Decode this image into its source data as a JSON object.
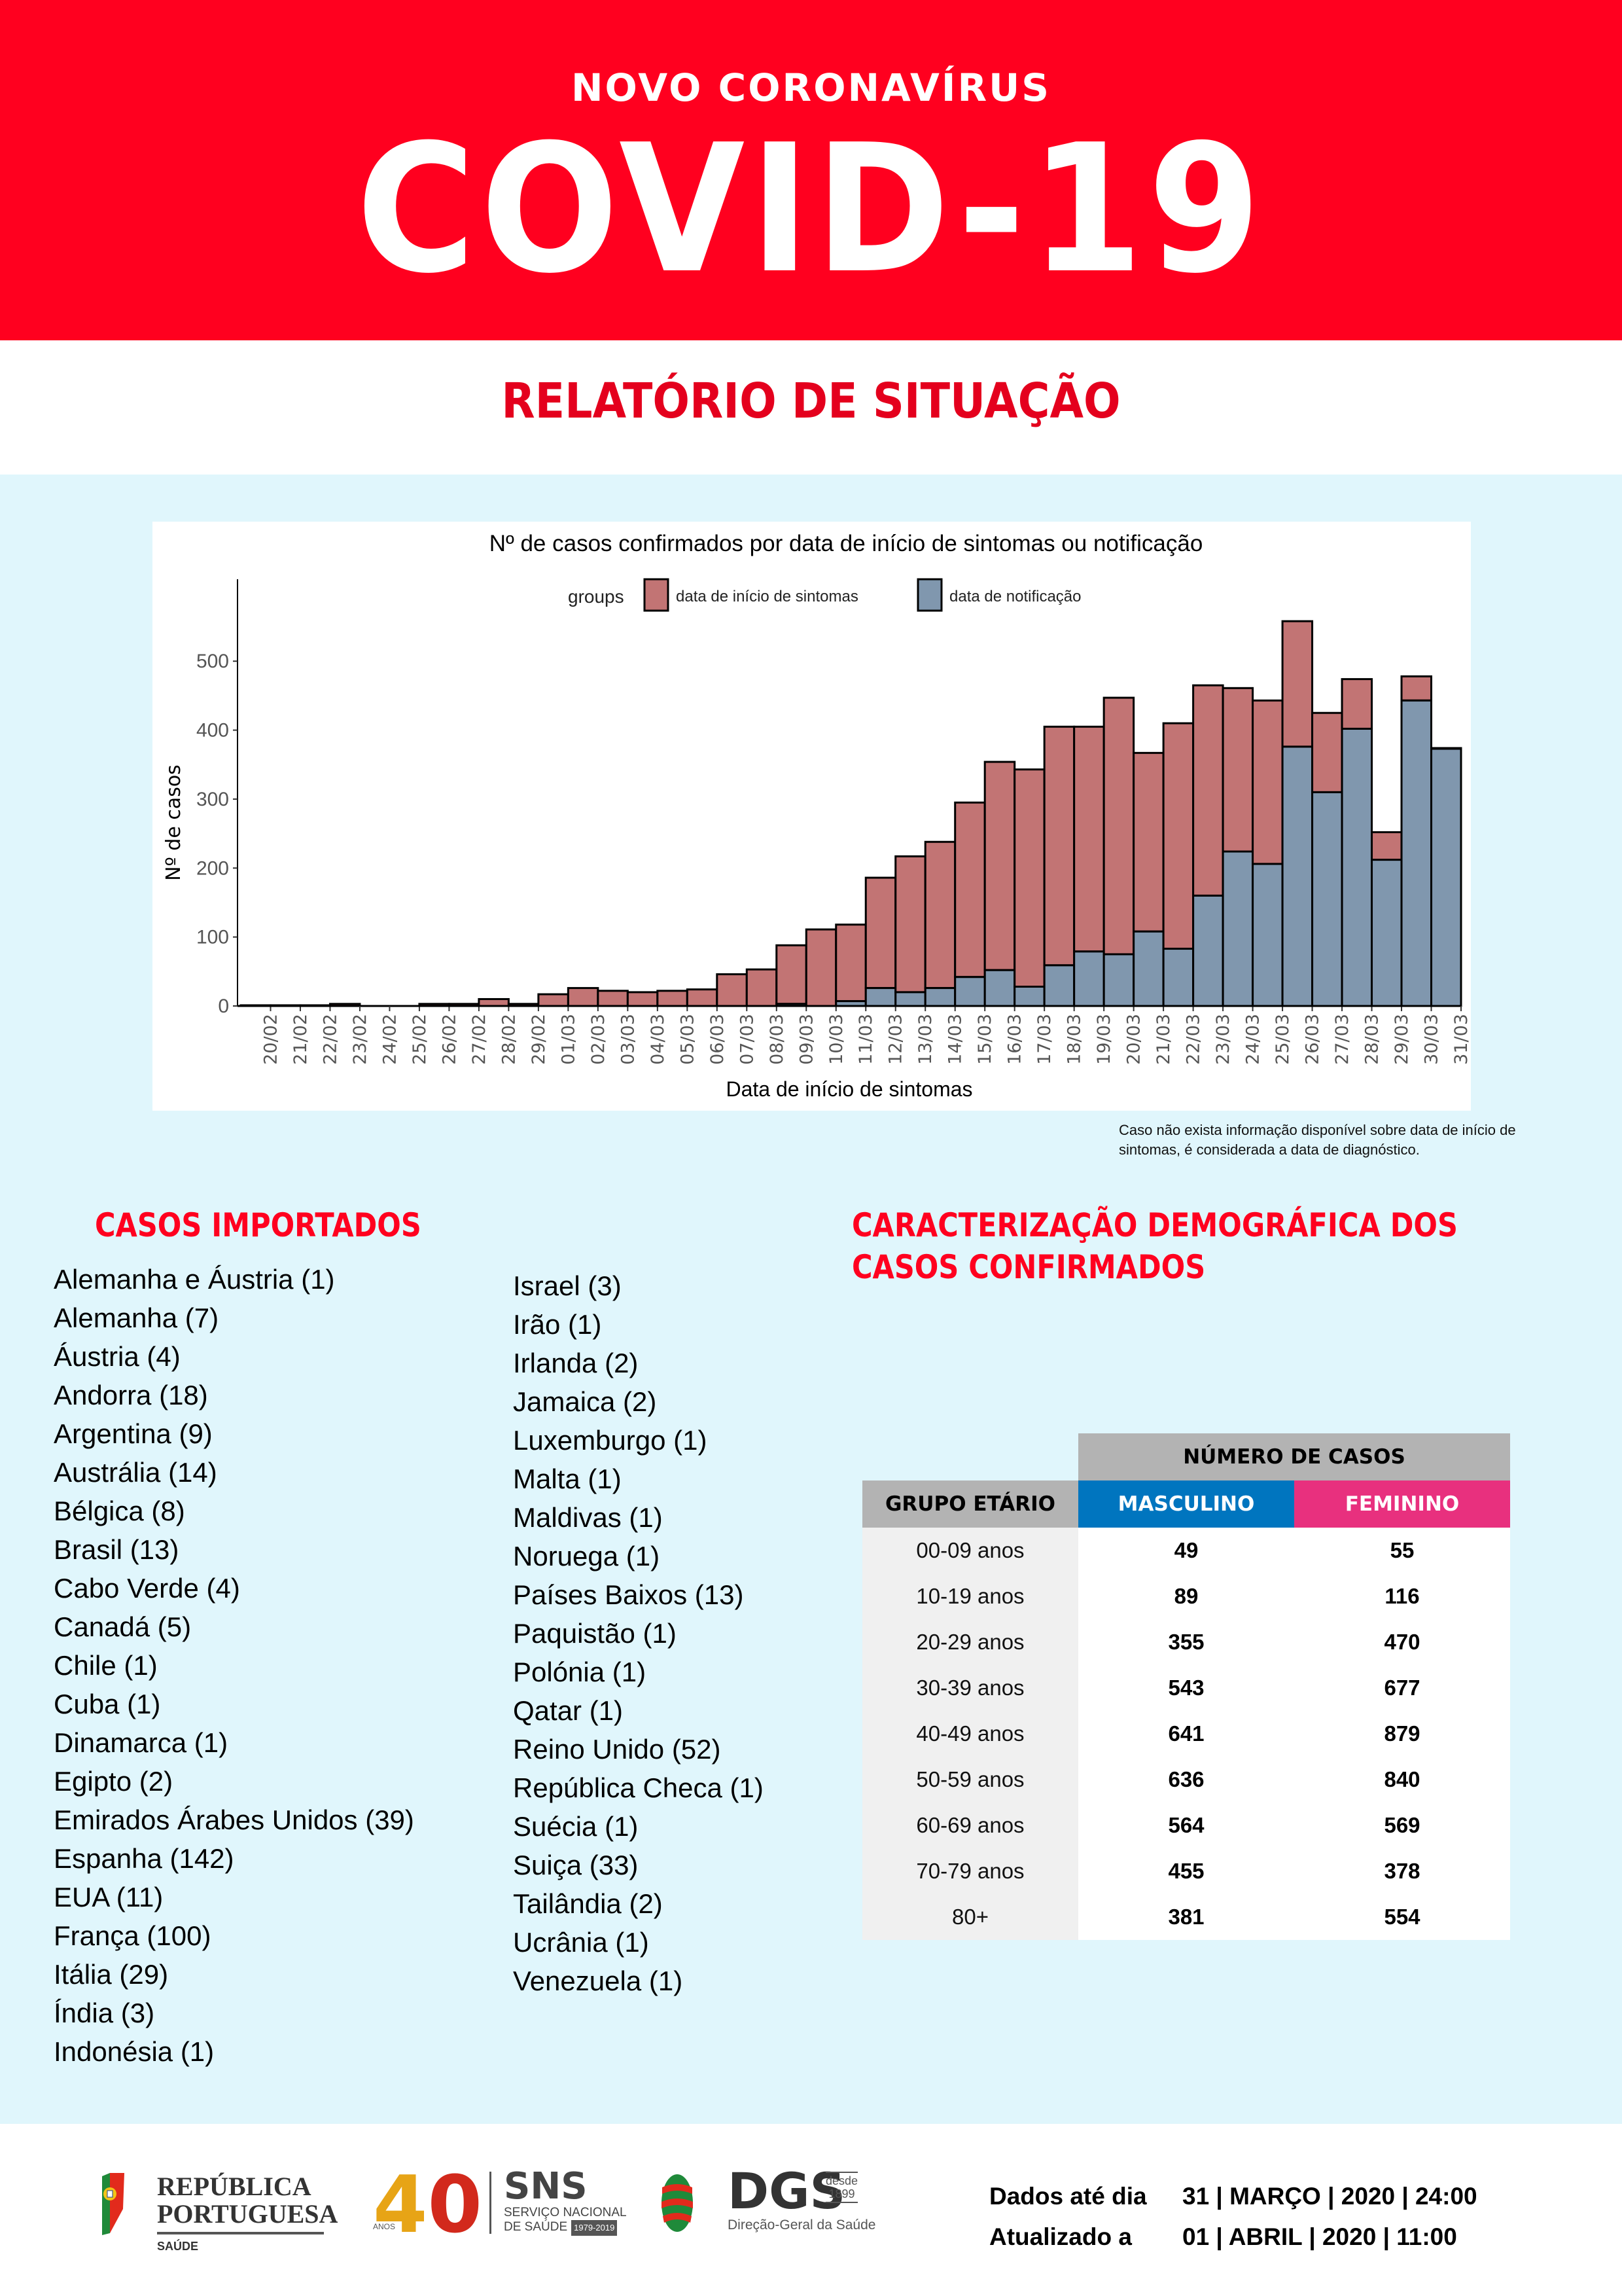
{
  "header": {
    "subtitle": "NOVO CORONAVÍRUS",
    "title": "COVID-19",
    "brand_color": "#ff001f"
  },
  "report_title": "RELATÓRIO DE SITUAÇÃO",
  "chart_data": {
    "type": "bar",
    "stacked": true,
    "title": "Nº de casos confirmados por data de início de sintomas ou notificação",
    "xlabel": "Data de início de sintomas",
    "ylabel": "Nº de casos",
    "ylim": [
      0,
      560
    ],
    "yticks": [
      0,
      100,
      200,
      300,
      400,
      500
    ],
    "grid": false,
    "legend": {
      "title": "groups",
      "position": "top",
      "entries": [
        {
          "label": "data de início de sintomas",
          "color": "#c27474"
        },
        {
          "label": "data de notificação",
          "color": "#8097ae"
        }
      ]
    },
    "categories": [
      "20/02",
      "21/02",
      "22/02",
      "23/02",
      "24/02",
      "25/02",
      "26/02",
      "27/02",
      "28/02",
      "29/02",
      "01/03",
      "02/03",
      "03/03",
      "04/03",
      "05/03",
      "06/03",
      "07/03",
      "08/03",
      "09/03",
      "10/03",
      "11/03",
      "12/03",
      "13/03",
      "14/03",
      "15/03",
      "16/03",
      "17/03",
      "18/03",
      "19/03",
      "20/03",
      "21/03",
      "22/03",
      "23/03",
      "24/03",
      "25/03",
      "26/03",
      "27/03",
      "28/03",
      "29/03",
      "30/03",
      "31/03"
    ],
    "series": [
      {
        "name": "data de notificação",
        "color": "#8097ae",
        "values": [
          0,
          0,
          0,
          0,
          0,
          0,
          0,
          0,
          0,
          0,
          0,
          0,
          0,
          0,
          0,
          0,
          0,
          0,
          3,
          0,
          7,
          26,
          20,
          26,
          42,
          52,
          28,
          59,
          79,
          75,
          108,
          83,
          160,
          224,
          206,
          376,
          310,
          402,
          212,
          443,
          373
        ]
      },
      {
        "name": "data de início de sintomas",
        "color": "#c27474",
        "values": [
          1,
          1,
          1,
          3,
          0,
          0,
          3,
          3,
          10,
          3,
          17,
          26,
          22,
          20,
          22,
          24,
          46,
          53,
          85,
          111,
          111,
          160,
          197,
          212,
          253,
          302,
          315,
          346,
          326,
          372,
          259,
          327,
          305,
          237,
          237,
          182,
          115,
          72,
          40,
          35,
          1
        ]
      }
    ]
  },
  "chart_note": "Caso não exista informação disponível sobre data de início de sintomas, é considerada a data de diagnóstico.",
  "imported": {
    "title": "CASOS IMPORTADOS",
    "col1": [
      "Alemanha e Áustria (1)",
      "Alemanha (7)",
      "Áustria (4)",
      "Andorra (18)",
      "Argentina (9)",
      "Austrália (14)",
      "Bélgica (8)",
      "Brasil (13)",
      "Cabo Verde (4)",
      "Canadá (5)",
      "Chile (1)",
      "Cuba (1)",
      "Dinamarca (1)",
      "Egipto (2)",
      "Emirados Árabes Unidos (39)",
      "Espanha (142)",
      "EUA (11)",
      "França (100)",
      "Itália (29)",
      "Índia (3)",
      "Indonésia (1)"
    ],
    "col2": [
      "Israel (3)",
      "Irão (1)",
      "Irlanda (2)",
      "Jamaica (2)",
      "Luxemburgo (1)",
      "Malta (1)",
      "Maldivas (1)",
      "Noruega (1)",
      "Países Baixos (13)",
      "Paquistão (1)",
      "Polónia (1)",
      "Qatar (1)",
      "Reino Unido (52)",
      "República Checa (1)",
      "Suécia (1)",
      "Suiça (33)",
      "Tailândia (2)",
      "Ucrânia (1)",
      "Venezuela (1)"
    ]
  },
  "demographics": {
    "title_line1": "CARACTERIZAÇÃO DEMOGRÁFICA DOS",
    "title_line2": "CASOS CONFIRMADOS",
    "header_cases": "NÚMERO DE CASOS",
    "header_group": "GRUPO ETÁRIO",
    "header_male": "MASCULINO",
    "header_female": "FEMININO",
    "male_color": "#0075bf",
    "female_color": "#e8307e",
    "rows": [
      {
        "group": "00-09 anos",
        "male": "49",
        "female": "55"
      },
      {
        "group": "10-19 anos",
        "male": "89",
        "female": "116"
      },
      {
        "group": "20-29 anos",
        "male": "355",
        "female": "470"
      },
      {
        "group": "30-39 anos",
        "male": "543",
        "female": "677"
      },
      {
        "group": "40-49 anos",
        "male": "641",
        "female": "879"
      },
      {
        "group": "50-59 anos",
        "male": "636",
        "female": "840"
      },
      {
        "group": "60-69 anos",
        "male": "564",
        "female": "569"
      },
      {
        "group": "70-79 anos",
        "male": "455",
        "female": "378"
      },
      {
        "group": "80+",
        "male": "381",
        "female": "554"
      }
    ]
  },
  "footer": {
    "rp_line1": "REPÚBLICA",
    "rp_line2": "PORTUGUESA",
    "rp_saude": "SAÚDE",
    "sns_40": "4",
    "sns_40b": "0",
    "sns_anos": "ANOS",
    "sns_big": "SNS",
    "sns_line1": "SERVIÇO NACIONAL",
    "sns_line2": "DE SAÚDE",
    "sns_years": "1979-2019",
    "dgs_big": "DGS",
    "dgs_sub": "Direção-Geral da Saúde",
    "dgs_since1": "desde",
    "dgs_since2": "1899",
    "data_label": "Dados até dia",
    "data_value": "31 | MARÇO | 2020 | 24:00",
    "updated_label": "Atualizado a",
    "updated_value": "01 | ABRIL | 2020 | 11:00"
  }
}
